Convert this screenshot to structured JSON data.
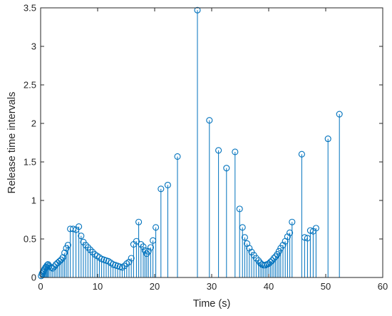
{
  "chart_data": {
    "type": "stem",
    "xlabel": "Time (s)",
    "ylabel": "Release time intervals",
    "xlim": [
      0,
      60
    ],
    "ylim": [
      0,
      3.5
    ],
    "x_ticks": [
      0,
      10,
      20,
      30,
      40,
      50,
      60
    ],
    "y_ticks": [
      0,
      0.5,
      1,
      1.5,
      2,
      2.5,
      3,
      3.5
    ],
    "x_tick_labels": [
      "0",
      "10",
      "20",
      "30",
      "40",
      "50",
      "60"
    ],
    "y_tick_labels": [
      "0",
      "0.5",
      "1",
      "1.5",
      "2",
      "2.5",
      "3",
      "3.5"
    ],
    "grid": false,
    "series_color": "#0072BD",
    "series": [
      {
        "x": [
          0.1,
          0.25,
          0.4,
          0.55,
          0.7,
          0.85,
          1.0,
          1.15,
          1.3,
          1.5,
          1.8,
          2.1,
          2.4,
          2.7,
          3.0,
          3.3,
          3.6,
          3.9,
          4.2,
          4.5,
          4.8,
          5.2,
          5.7,
          6.2,
          6.7,
          7.1,
          7.5,
          7.9,
          8.3,
          8.7,
          9.1,
          9.5,
          9.9,
          10.3,
          10.7,
          11.1,
          11.5,
          11.9,
          12.3,
          12.7,
          13.1,
          13.5,
          13.9,
          14.3,
          14.7,
          15.1,
          15.5,
          15.9,
          16.3,
          16.8,
          17.2,
          17.6,
          18.0,
          18.3,
          18.6,
          18.9,
          19.3,
          19.7,
          20.2,
          21.1,
          22.3,
          24.0,
          27.5,
          29.6,
          31.2,
          32.6,
          34.1,
          34.9,
          35.4,
          35.8,
          36.2,
          36.6,
          37.0,
          37.4,
          37.8,
          38.2,
          38.5,
          38.8,
          39.1,
          39.4,
          39.7,
          40.0,
          40.3,
          40.6,
          40.9,
          41.2,
          41.5,
          41.8,
          42.1,
          42.5,
          42.9,
          43.3,
          43.7,
          44.1,
          45.8,
          46.3,
          46.8,
          47.3,
          47.8,
          48.3,
          50.4,
          52.4
        ],
        "y": [
          0.02,
          0.05,
          0.07,
          0.09,
          0.11,
          0.13,
          0.14,
          0.16,
          0.17,
          0.15,
          0.13,
          0.12,
          0.14,
          0.17,
          0.19,
          0.21,
          0.23,
          0.26,
          0.32,
          0.38,
          0.42,
          0.63,
          0.63,
          0.62,
          0.66,
          0.54,
          0.46,
          0.42,
          0.39,
          0.36,
          0.33,
          0.3,
          0.28,
          0.26,
          0.24,
          0.23,
          0.22,
          0.21,
          0.19,
          0.17,
          0.16,
          0.15,
          0.14,
          0.13,
          0.15,
          0.18,
          0.2,
          0.25,
          0.43,
          0.47,
          0.72,
          0.43,
          0.4,
          0.35,
          0.31,
          0.34,
          0.39,
          0.48,
          0.65,
          1.15,
          1.2,
          1.57,
          3.47,
          2.04,
          1.65,
          1.42,
          1.63,
          0.89,
          0.65,
          0.52,
          0.44,
          0.38,
          0.33,
          0.29,
          0.25,
          0.22,
          0.19,
          0.17,
          0.16,
          0.16,
          0.17,
          0.18,
          0.2,
          0.22,
          0.25,
          0.27,
          0.3,
          0.34,
          0.38,
          0.42,
          0.47,
          0.53,
          0.58,
          0.72,
          1.6,
          0.52,
          0.51,
          0.61,
          0.6,
          0.64,
          1.8,
          2.12
        ]
      }
    ]
  }
}
